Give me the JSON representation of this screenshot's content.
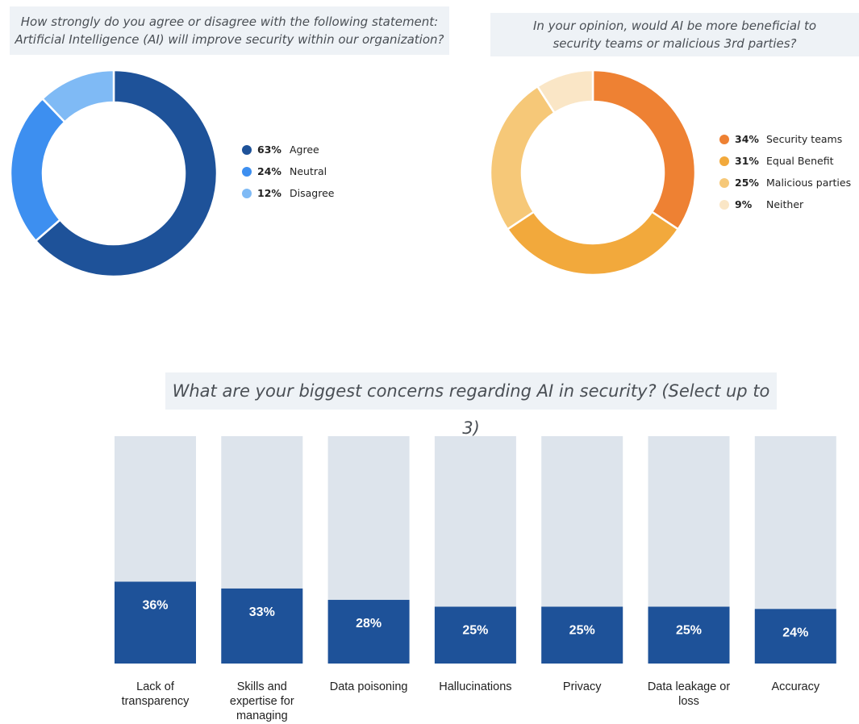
{
  "charts": {
    "q1": {
      "question_line1": "How strongly do you agree or disagree with the following statement:",
      "question_line2": "Artificial Intelligence (AI) will improve security within our organization?",
      "legend": [
        {
          "pct": "63%",
          "label": "Agree"
        },
        {
          "pct": "24%",
          "label": "Neutral"
        },
        {
          "pct": "12%",
          "label": "Disagree"
        }
      ]
    },
    "q2": {
      "question_line1": "In your opinion, would AI be more beneficial to",
      "question_line2": "security teams or malicious 3rd parties?",
      "legend": [
        {
          "pct": "34%",
          "label": "Security teams"
        },
        {
          "pct": "31%",
          "label": "Equal Benefit"
        },
        {
          "pct": "25%",
          "label": "Malicious parties"
        },
        {
          "pct": "9%",
          "label": "Neither"
        }
      ]
    },
    "q3": {
      "question": "What are your biggest concerns regarding AI in security? (Select up to 3)"
    }
  },
  "chart_data": [
    {
      "type": "pie",
      "donut": true,
      "categories": [
        "Agree",
        "Neutral",
        "Disagree"
      ],
      "values": [
        63,
        24,
        12
      ],
      "colors": [
        "#1e5299",
        "#3d8ff0",
        "#7fbaf5"
      ],
      "legend_position": "right"
    },
    {
      "type": "pie",
      "donut": true,
      "categories": [
        "Security teams",
        "Equal Benefit",
        "Malicious parties",
        "Neither"
      ],
      "values": [
        34,
        31,
        25,
        9
      ],
      "colors": [
        "#ee8133",
        "#f2a93c",
        "#f6c878",
        "#fae6c6"
      ],
      "legend_position": "right"
    },
    {
      "type": "bar",
      "categories": [
        "Lack of transparency",
        "Skills and expertise for managing",
        "Data poisoning",
        "Hallucinations",
        "Privacy",
        "Data leakage or loss",
        "Accuracy"
      ],
      "label_lines": [
        [
          "Lack of",
          "transparency"
        ],
        [
          "Skills and",
          "expertise for",
          "managing"
        ],
        [
          "Data poisoning"
        ],
        [
          "Hallucinations"
        ],
        [
          "Privacy"
        ],
        [
          "Data leakage or",
          "loss"
        ],
        [
          "Accuracy"
        ]
      ],
      "values": [
        36,
        33,
        28,
        25,
        25,
        25,
        24
      ],
      "value_labels": [
        "36%",
        "33%",
        "28%",
        "25%",
        "25%",
        "25%",
        "24%"
      ],
      "ylim": [
        0,
        100
      ],
      "bar_color": "#1e5299",
      "track_color": "#dde4ec",
      "grid": false
    }
  ]
}
